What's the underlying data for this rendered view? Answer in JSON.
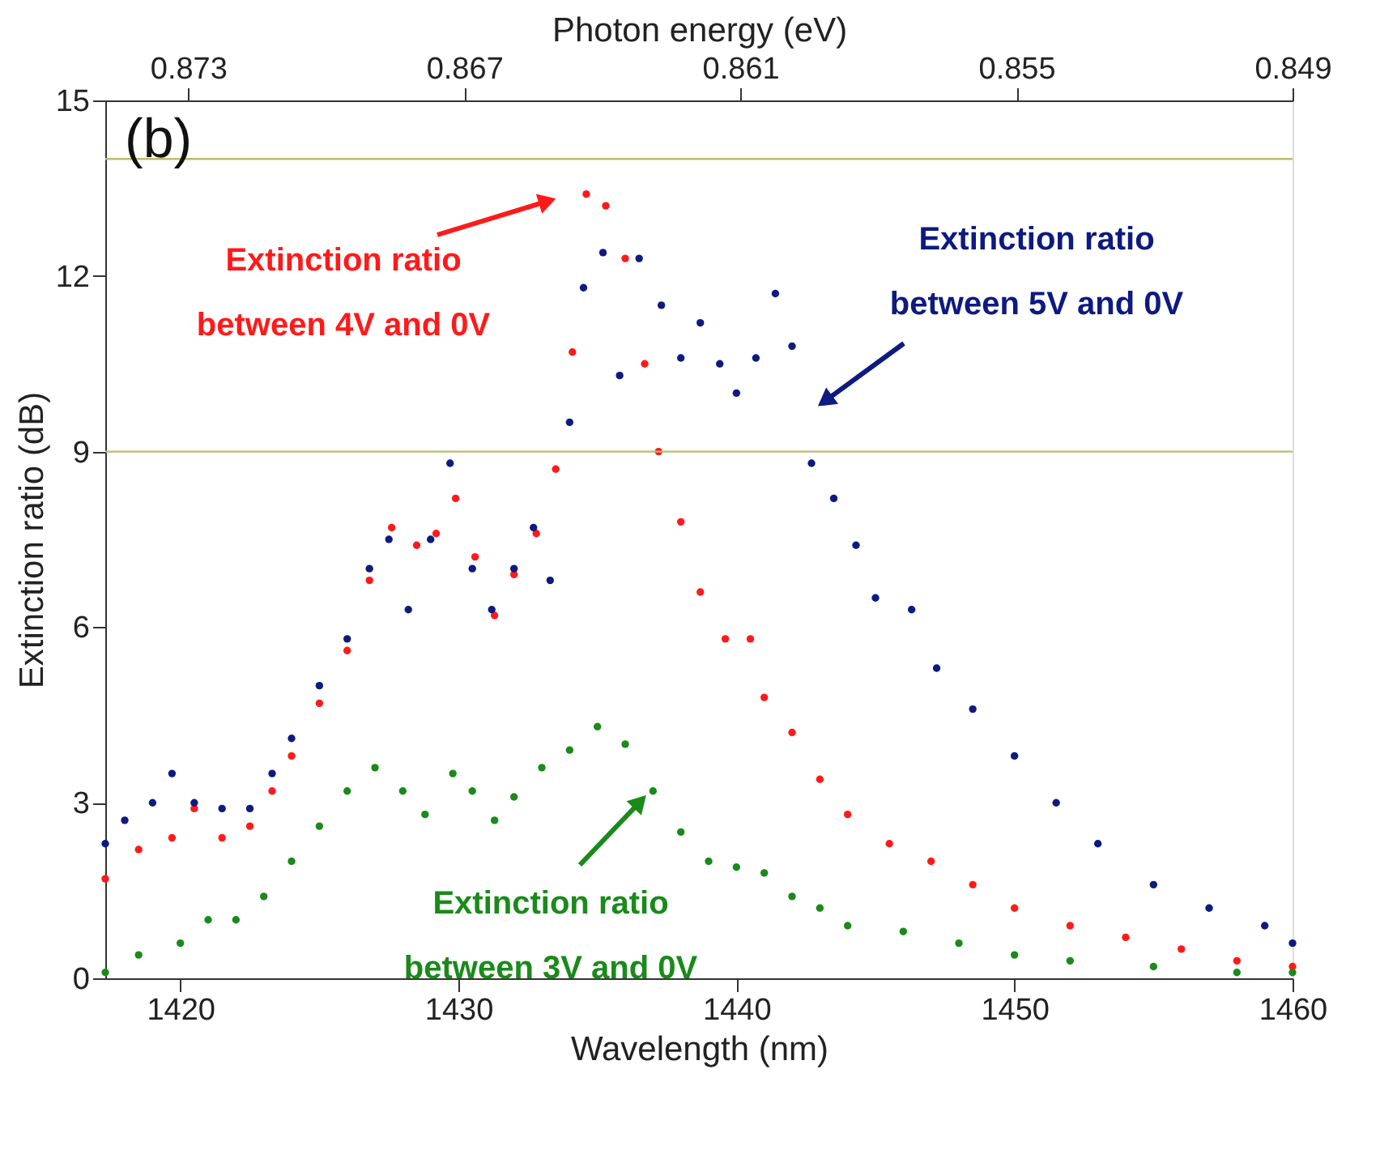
{
  "chart_data": {
    "type": "scatter",
    "xlabel": "Wavelength (nm)",
    "ylabel": "Extinction ratio (dB)",
    "x2label": "Photon energy (eV)",
    "xlim": [
      1417.3,
      1460
    ],
    "xticks": [
      1420,
      1430,
      1440,
      1450,
      1460
    ],
    "ylim": [
      0,
      15
    ],
    "yticks": [
      0,
      3,
      6,
      9,
      12,
      15
    ],
    "x2lim": [
      0.8748,
      0.849
    ],
    "x2ticks": [
      0.873,
      0.867,
      0.861,
      0.855,
      0.849
    ],
    "marker": "circle",
    "grid": false,
    "ref_lines": [
      {
        "axis": "y",
        "value": 14,
        "color": "#b8bd6a"
      },
      {
        "axis": "y",
        "value": 9,
        "color": "#b8bd6a"
      }
    ],
    "annotations": [
      "(b)",
      "Extinction ratio\nbetween 4V and 0V",
      "Extinction ratio\nbetween 5V and 0V",
      {
        "text": "Extinction ratio\nbetween 3V and 0V",
        "x": 1436.7,
        "y": 3.1
      }
    ],
    "series": [
      {
        "color": "#ff1a1a",
        "x": [
          1417.3,
          1418.5,
          1419.7,
          1420.5,
          1421.5,
          1422.5,
          1423.3,
          1424,
          1425,
          1426,
          1426.8,
          1427.6,
          1428.5,
          1429.2,
          1429.9,
          1430.6,
          1431.3,
          1432,
          1432.8,
          1433.5,
          1434.1,
          1434.6,
          1435.3,
          1436,
          1436.7,
          1437.2,
          1438,
          1438.7,
          1439.6,
          1440.5,
          1441,
          1442,
          1443,
          1444,
          1445.5,
          1447,
          1448.5,
          1450,
          1452,
          1454,
          1456,
          1458,
          1460
        ],
        "values": [
          1.7,
          2.2,
          2.4,
          2.9,
          2.4,
          2.6,
          3.2,
          3.8,
          4.7,
          5.6,
          6.8,
          7.7,
          7.4,
          7.6,
          8.2,
          7.2,
          6.2,
          6.9,
          7.6,
          8.7,
          10.7,
          13.4,
          13.2,
          12.3,
          10.5,
          9.0,
          7.8,
          6.6,
          5.8,
          5.8,
          4.8,
          4.2,
          3.4,
          2.8,
          2.3,
          2.0,
          1.6,
          1.2,
          0.9,
          0.7,
          0.5,
          0.3,
          0.2
        ]
      },
      {
        "color": "#0d1a80",
        "x": [
          1417.3,
          1418,
          1419,
          1419.7,
          1420.5,
          1421.5,
          1422.5,
          1423.3,
          1424,
          1425,
          1426,
          1426.8,
          1427.5,
          1428.2,
          1429,
          1429.7,
          1430.5,
          1431.2,
          1432,
          1432.7,
          1433.3,
          1434,
          1434.5,
          1435.2,
          1435.8,
          1436.5,
          1437.3,
          1438,
          1438.7,
          1439.4,
          1440,
          1440.7,
          1441.4,
          1442,
          1442.7,
          1443.5,
          1444.3,
          1445,
          1446.3,
          1447.2,
          1448.5,
          1450,
          1451.5,
          1453,
          1455,
          1457,
          1459,
          1460
        ],
        "values": [
          2.3,
          2.7,
          3.0,
          3.5,
          3.0,
          2.9,
          2.9,
          3.5,
          4.1,
          5.0,
          5.8,
          7.0,
          7.5,
          6.3,
          7.5,
          8.8,
          7.0,
          6.3,
          7.0,
          7.7,
          6.8,
          9.5,
          11.8,
          12.4,
          10.3,
          12.3,
          11.5,
          10.6,
          11.2,
          10.5,
          10.0,
          10.6,
          11.7,
          10.8,
          8.8,
          8.2,
          7.4,
          6.5,
          6.3,
          5.3,
          4.6,
          3.8,
          3.0,
          2.3,
          1.6,
          1.2,
          0.9,
          0.6
        ]
      },
      {
        "color": "#1a8a1a",
        "x": [
          1417.3,
          1418.5,
          1420,
          1421,
          1422,
          1423,
          1424,
          1425,
          1426,
          1427,
          1428,
          1428.8,
          1429.8,
          1430.5,
          1431.3,
          1432,
          1433,
          1434,
          1435,
          1436,
          1437,
          1438,
          1439,
          1440,
          1441,
          1442,
          1443,
          1444,
          1446,
          1448,
          1450,
          1452,
          1455,
          1458,
          1460
        ],
        "values": [
          0.1,
          0.4,
          0.6,
          1.0,
          1.0,
          1.4,
          2.0,
          2.6,
          3.2,
          3.6,
          3.2,
          2.8,
          3.5,
          3.2,
          2.7,
          3.1,
          3.6,
          3.9,
          4.3,
          4.0,
          3.2,
          2.5,
          2.0,
          1.9,
          1.8,
          1.4,
          1.2,
          0.9,
          0.8,
          0.6,
          0.4,
          0.3,
          0.2,
          0.1,
          0.1
        ]
      }
    ]
  }
}
